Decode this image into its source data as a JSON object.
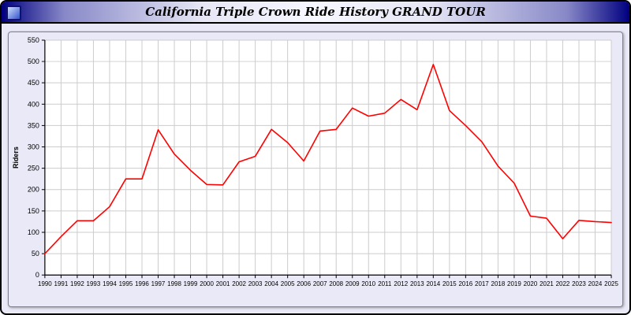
{
  "window": {
    "title": "California Triple Crown Ride History GRAND TOUR"
  },
  "chart_data": {
    "type": "line",
    "title": "California Triple Crown Ride History GRAND TOUR",
    "xlabel": "",
    "ylabel": "Riders",
    "ylim": [
      0,
      550
    ],
    "ytick_step": 50,
    "grid": true,
    "legend": "none",
    "x": [
      1990,
      1991,
      1992,
      1993,
      1994,
      1995,
      1996,
      1997,
      1998,
      1999,
      2000,
      2001,
      2002,
      2003,
      2004,
      2005,
      2006,
      2007,
      2008,
      2009,
      2010,
      2011,
      2012,
      2013,
      2014,
      2015,
      2016,
      2017,
      2018,
      2019,
      2020,
      2021,
      2022,
      2023,
      2024,
      2025
    ],
    "series": [
      {
        "name": "Riders",
        "color": "#ff0000",
        "values": [
          50,
          90,
          127,
          127,
          160,
          225,
          225,
          340,
          283,
          245,
          212,
          211,
          265,
          278,
          341,
          310,
          267,
          337,
          341,
          391,
          372,
          379,
          411,
          387,
          493,
          385,
          350,
          312,
          255,
          215,
          138,
          133,
          85,
          128,
          125,
          123
        ]
      }
    ]
  }
}
